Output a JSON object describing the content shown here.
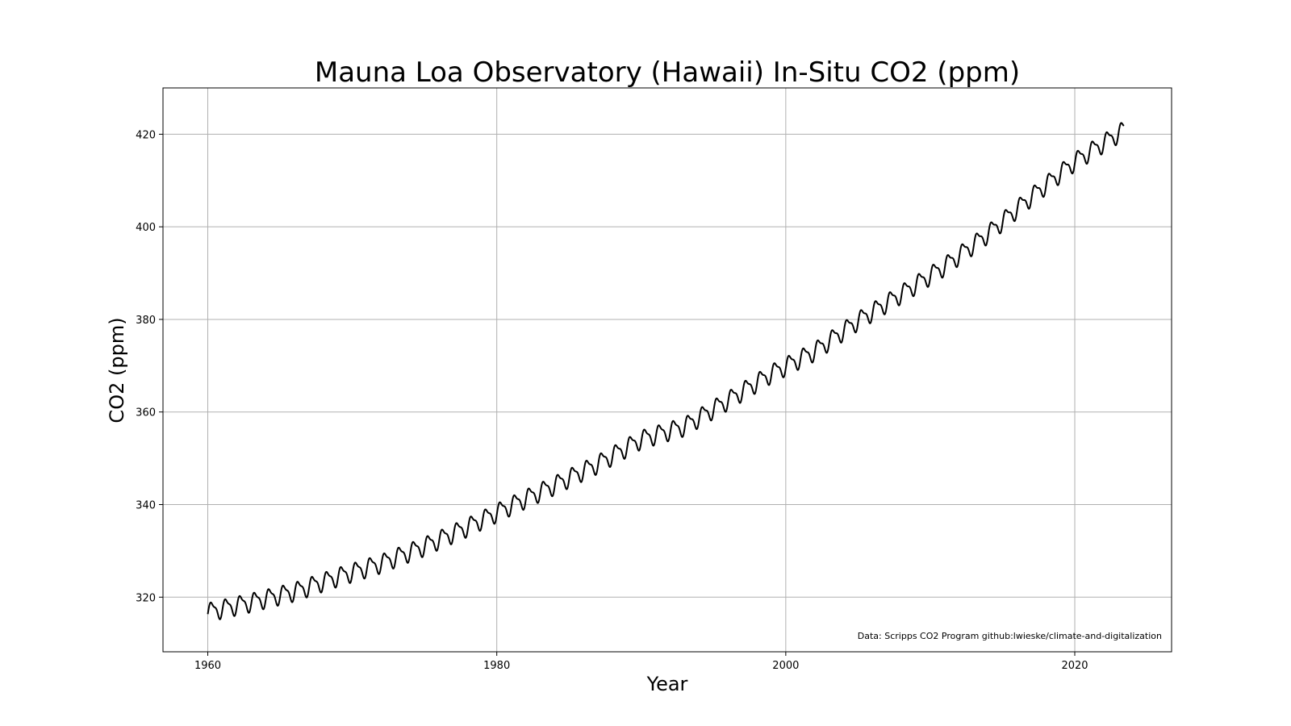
{
  "chart_data": {
    "type": "line",
    "title": "Mauna Loa Observatory (Hawaii) In-Situ CO2 (ppm)",
    "xlabel": "Year",
    "ylabel": "CO2 (ppm)",
    "xlim": [
      1956.9,
      2026.7
    ],
    "ylim": [
      308.2,
      430
    ],
    "xticks": [
      1960,
      1980,
      2000,
      2020
    ],
    "yticks": [
      320,
      340,
      360,
      380,
      400,
      420
    ],
    "grid": true,
    "line_color": "#000000",
    "grid_color": "#b0b0b0",
    "annotation": "Data: Scripps CO2 Program   github:lwieske/climate-and-digitalization",
    "annotation_position": "bottom-right",
    "series": [
      {
        "x": [
          1960,
          1963,
          1966,
          1969,
          1972,
          1975,
          1978,
          1981,
          1984,
          1987,
          1990,
          1993,
          1996,
          1999,
          2002,
          2005,
          2008,
          2011,
          2014,
          2017,
          2020,
          2023.4
        ],
        "values": [
          316.9,
          319.0,
          321.3,
          324.5,
          327.4,
          331.1,
          335.3,
          339.9,
          344.3,
          348.9,
          354.2,
          357.0,
          362.6,
          368.4,
          373.2,
          379.8,
          385.6,
          391.6,
          398.6,
          406.6,
          414.2,
          421.0
        ]
      }
    ],
    "seasonal_amplitude_ppm": 3.2
  }
}
